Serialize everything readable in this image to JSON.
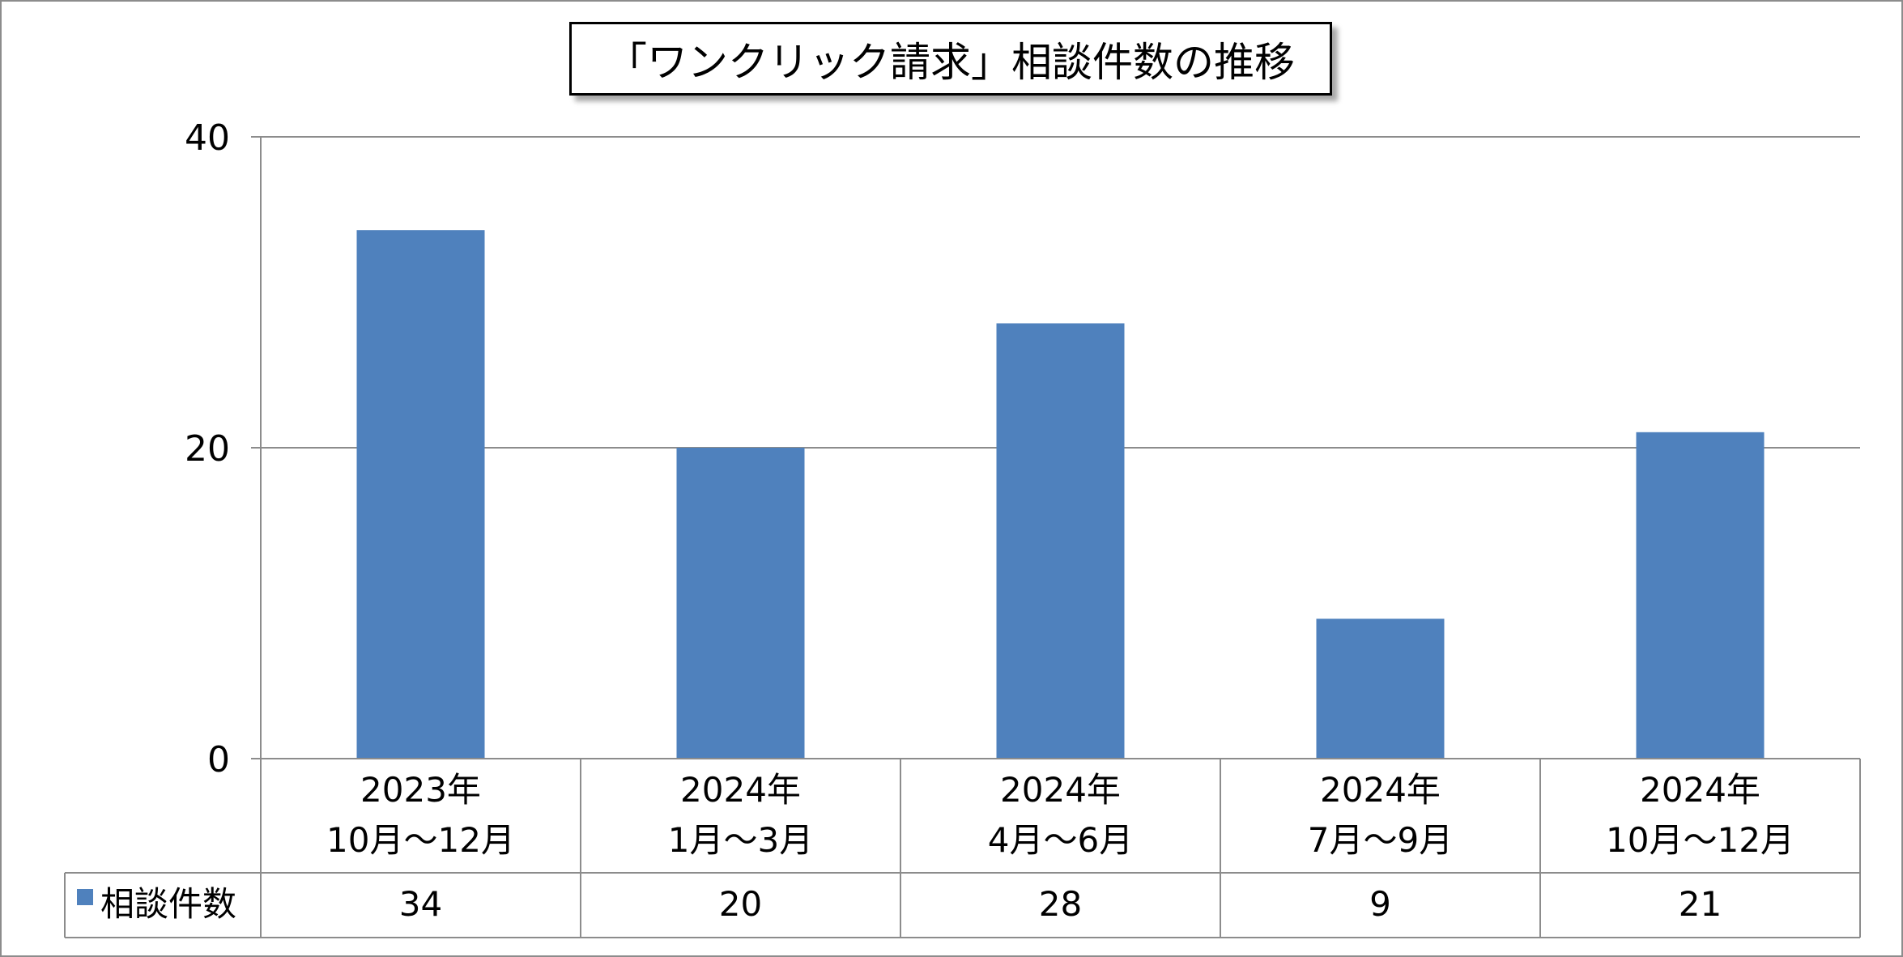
{
  "chart_data": {
    "type": "bar",
    "title": "「ワンクリック請求」相談件数の推移",
    "categories": [
      [
        "2023年",
        "10月～12月"
      ],
      [
        "2024年",
        "1月～3月"
      ],
      [
        "2024年",
        "4月～6月"
      ],
      [
        "2024年",
        "7月～9月"
      ],
      [
        "2024年",
        "10月～12月"
      ]
    ],
    "series": [
      {
        "name": "相談件数",
        "values": [
          34,
          20,
          28,
          9,
          21
        ],
        "color": "#4f81bd"
      }
    ],
    "ylim": [
      0,
      40
    ],
    "yticks": [
      0,
      20,
      40
    ],
    "grid": true,
    "legend": "data-table",
    "data_table": true
  }
}
